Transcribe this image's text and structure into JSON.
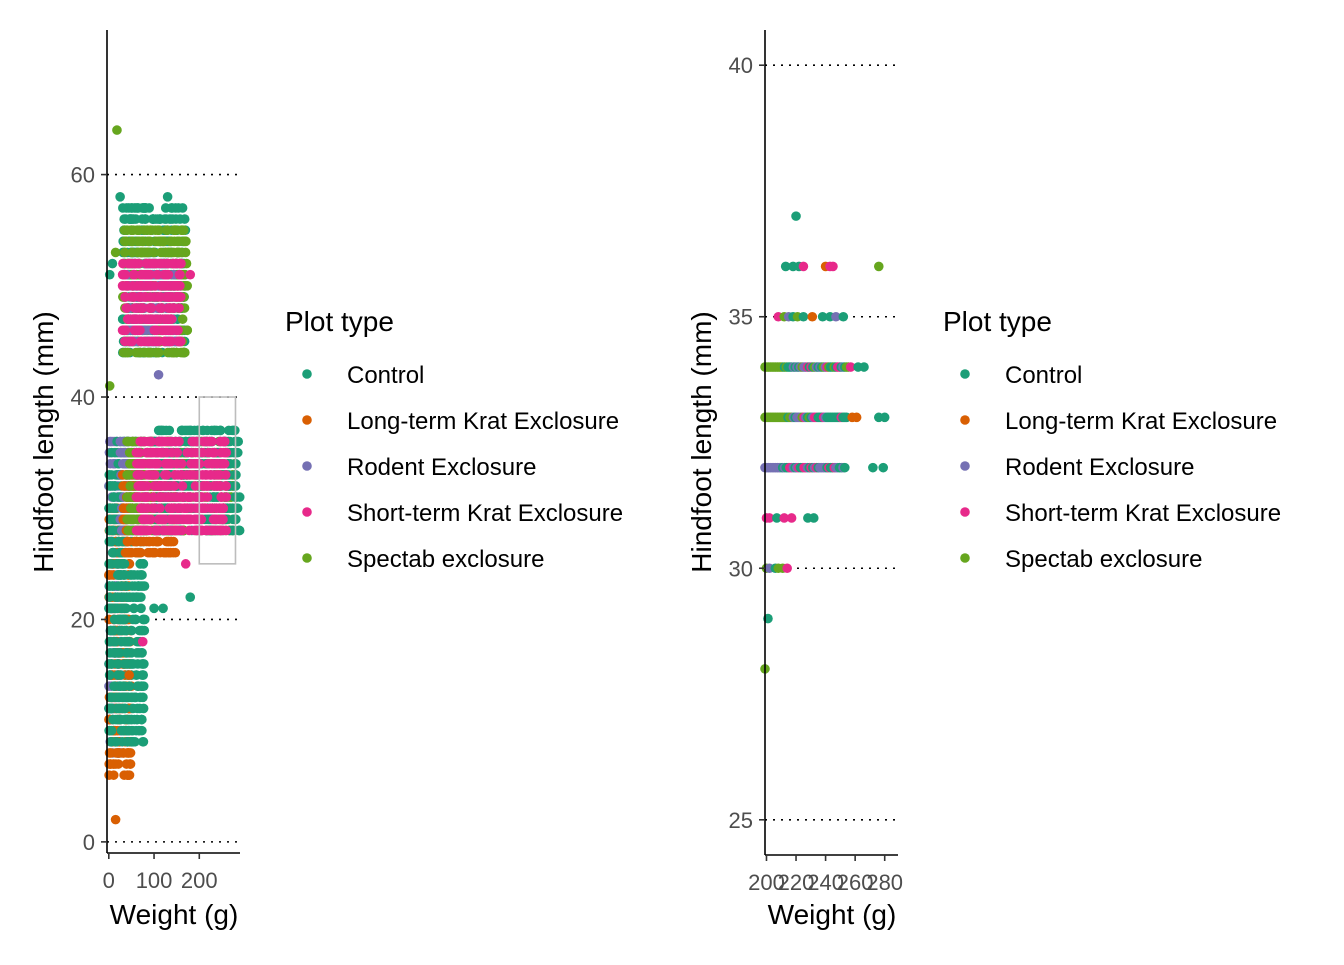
{
  "palette": {
    "Control": "#1b9e77",
    "Long-term Krat Exclosure": "#d95f02",
    "Rodent Exclosure": "#7570b3",
    "Short-term Krat Exclosure": "#e7298a",
    "Spectab exclosure": "#66a61e"
  },
  "chart_data": [
    {
      "type": "scatter",
      "panel": "left",
      "xlabel": "Weight (g)",
      "ylabel": "Hindfoot length (mm)",
      "xlim": [
        -4,
        290
      ],
      "ylim": [
        -1,
        73
      ],
      "x_ticks": [
        0,
        100,
        200
      ],
      "x_tick_labels": [
        "0",
        "100",
        "200"
      ],
      "y_ticks": [
        0,
        20,
        40,
        60
      ],
      "y_tick_labels": [
        "0",
        "20",
        "40",
        "60"
      ],
      "grid": "horizontal dotted",
      "zoom_box": {
        "x": [
          200,
          280
        ],
        "y": [
          25,
          40
        ]
      },
      "legend": {
        "title": "Plot type",
        "placement": "right",
        "entries": [
          "Control",
          "Long-term Krat Exclosure",
          "Rodent Exclosure",
          "Short-term Krat Exclosure",
          "Spectab exclosure"
        ]
      },
      "clusters": [
        {
          "series": "Rodent Exclosure",
          "x": [
            0,
            28
          ],
          "y": [
            8,
            36
          ]
        },
        {
          "series": "Long-term Krat Exclosure",
          "x": [
            0,
            50
          ],
          "y": [
            6,
            30
          ]
        },
        {
          "series": "Control",
          "x": [
            0,
            80
          ],
          "y": [
            9,
            36
          ]
        },
        {
          "series": "Rodent Exclosure",
          "x": [
            25,
            160
          ],
          "y": [
            28,
            36
          ]
        },
        {
          "series": "Long-term Krat Exclosure",
          "x": [
            30,
            150
          ],
          "y": [
            26,
            33
          ]
        },
        {
          "series": "Spectab exclosure",
          "x": [
            40,
            280
          ],
          "y": [
            28,
            36
          ]
        },
        {
          "series": "Control",
          "x": [
            100,
            290
          ],
          "y": [
            28,
            37
          ]
        },
        {
          "series": "Short-term Krat Exclosure",
          "x": [
            60,
            260
          ],
          "y": [
            28,
            36
          ]
        },
        {
          "series": "Control",
          "x": [
            30,
            170
          ],
          "y": [
            44,
            57
          ]
        },
        {
          "series": "Spectab exclosure",
          "x": [
            30,
            175
          ],
          "y": [
            44,
            55
          ]
        },
        {
          "series": "Rodent Exclosure",
          "x": [
            40,
            150
          ],
          "y": [
            45,
            52
          ]
        },
        {
          "series": "Short-term Krat Exclosure",
          "x": [
            30,
            160
          ],
          "y": [
            45,
            52
          ]
        }
      ],
      "points": [
        {
          "series": "Spectab exclosure",
          "x": 18,
          "y": 64
        },
        {
          "series": "Control",
          "x": 25,
          "y": 58
        },
        {
          "series": "Control",
          "x": 130,
          "y": 58
        },
        {
          "series": "Spectab exclosure",
          "x": 15,
          "y": 53
        },
        {
          "series": "Control",
          "x": 8,
          "y": 52
        },
        {
          "series": "Control",
          "x": 2,
          "y": 51
        },
        {
          "series": "Long-term Krat Exclosure",
          "x": 15,
          "y": 2
        },
        {
          "series": "Control",
          "x": 180,
          "y": 22
        },
        {
          "series": "Short-term Krat Exclosure",
          "x": 170,
          "y": 25
        },
        {
          "series": "Control",
          "x": 100,
          "y": 21
        },
        {
          "series": "Control",
          "x": 120,
          "y": 21
        },
        {
          "series": "Short-term Krat Exclosure",
          "x": 75,
          "y": 18
        },
        {
          "series": "Long-term Krat Exclosure",
          "x": 45,
          "y": 15
        },
        {
          "series": "Spectab exclosure",
          "x": 2,
          "y": 41
        },
        {
          "series": "Rodent Exclosure",
          "x": 110,
          "y": 42
        },
        {
          "series": "Short-term Krat Exclosure",
          "x": 180,
          "y": 51
        }
      ]
    },
    {
      "type": "scatter",
      "panel": "right",
      "xlabel": "Weight (g)",
      "ylabel": "Hindfoot length (mm)",
      "xlim": [
        199,
        289
      ],
      "ylim": [
        24.3,
        40.7
      ],
      "x_ticks": [
        200,
        220,
        240,
        260,
        280
      ],
      "x_tick_labels": [
        "200",
        "220",
        "240",
        "260",
        "280"
      ],
      "y_ticks": [
        25,
        30,
        35,
        40
      ],
      "y_tick_labels": [
        "25",
        "30",
        "35",
        "40"
      ],
      "grid": "horizontal dotted",
      "legend": {
        "title": "Plot type",
        "placement": "right",
        "entries": [
          "Control",
          "Long-term Krat Exclosure",
          "Rodent Exclosure",
          "Short-term Krat Exclosure",
          "Spectab exclosure"
        ]
      },
      "points": [
        {
          "series": "Control",
          "x": 220,
          "y": 37
        },
        {
          "series": "Control",
          "x": 213,
          "y": 36
        },
        {
          "series": "Control",
          "x": 218,
          "y": 36
        },
        {
          "series": "Control",
          "x": 222,
          "y": 36
        },
        {
          "series": "Short-term Krat Exclosure",
          "x": 225,
          "y": 36
        },
        {
          "series": "Long-term Krat Exclosure",
          "x": 240,
          "y": 36
        },
        {
          "series": "Short-term Krat Exclosure",
          "x": 243,
          "y": 36
        },
        {
          "series": "Short-term Krat Exclosure",
          "x": 245,
          "y": 36
        },
        {
          "series": "Spectab exclosure",
          "x": 276,
          "y": 36
        },
        {
          "series": "Short-term Krat Exclosure",
          "x": 208,
          "y": 35
        },
        {
          "series": "Spectab exclosure",
          "x": 212,
          "y": 35
        },
        {
          "series": "Rodent Exclosure",
          "x": 215,
          "y": 35
        },
        {
          "series": "Control",
          "x": 218,
          "y": 35
        },
        {
          "series": "Spectab exclosure",
          "x": 221,
          "y": 35
        },
        {
          "series": "Control",
          "x": 225,
          "y": 35
        },
        {
          "series": "Long-term Krat Exclosure",
          "x": 231,
          "y": 35
        },
        {
          "series": "Control",
          "x": 238,
          "y": 35
        },
        {
          "series": "Control",
          "x": 243,
          "y": 35
        },
        {
          "series": "Rodent Exclosure",
          "x": 247,
          "y": 35
        },
        {
          "series": "Control",
          "x": 252,
          "y": 35
        },
        {
          "series": "Control",
          "x": 201,
          "y": 29
        },
        {
          "series": "Spectab exclosure",
          "x": 199,
          "y": 28
        },
        {
          "series": "Spectab exclosure",
          "x": 200,
          "y": 30
        },
        {
          "series": "Rodent Exclosure",
          "x": 202,
          "y": 30
        },
        {
          "series": "Control",
          "x": 206,
          "y": 30
        },
        {
          "series": "Spectab exclosure",
          "x": 208,
          "y": 30
        },
        {
          "series": "Spectab exclosure",
          "x": 211,
          "y": 30
        },
        {
          "series": "Short-term Krat Exclosure",
          "x": 214,
          "y": 30
        },
        {
          "series": "Short-term Krat Exclosure",
          "x": 200,
          "y": 31
        },
        {
          "series": "Short-term Krat Exclosure",
          "x": 202,
          "y": 31
        },
        {
          "series": "Control",
          "x": 207,
          "y": 31
        },
        {
          "series": "Short-term Krat Exclosure",
          "x": 212,
          "y": 31
        },
        {
          "series": "Short-term Krat Exclosure",
          "x": 217,
          "y": 31
        },
        {
          "series": "Control",
          "x": 228,
          "y": 31
        },
        {
          "series": "Control",
          "x": 232,
          "y": 31
        },
        {
          "series": "Long-term Krat Exclosure",
          "x": 258,
          "y": 33
        },
        {
          "series": "Long-term Krat Exclosure",
          "x": 261,
          "y": 33
        },
        {
          "series": "Control",
          "x": 276,
          "y": 33
        },
        {
          "series": "Control",
          "x": 280,
          "y": 33
        },
        {
          "series": "Control",
          "x": 272,
          "y": 32
        },
        {
          "series": "Control",
          "x": 279,
          "y": 32
        },
        {
          "series": "Short-term Krat Exclosure",
          "x": 257,
          "y": 34
        },
        {
          "series": "Control",
          "x": 262,
          "y": 34
        },
        {
          "series": "Control",
          "x": 266,
          "y": 34
        }
      ],
      "row_bands": [
        {
          "y": 34,
          "x": [
            199,
            256
          ],
          "series": [
            "Spectab exclosure",
            "Control",
            "Rodent Exclosure",
            "Short-term Krat Exclosure",
            "Control"
          ]
        },
        {
          "y": 33,
          "x": [
            199,
            255
          ],
          "series": [
            "Spectab exclosure",
            "Control",
            "Rodent Exclosure",
            "Short-term Krat Exclosure",
            "Control"
          ]
        },
        {
          "y": 32,
          "x": [
            199,
            254
          ],
          "series": [
            "Rodent Exclosure",
            "Control",
            "Short-term Krat Exclosure",
            "Rodent Exclosure",
            "Control"
          ]
        }
      ]
    }
  ]
}
